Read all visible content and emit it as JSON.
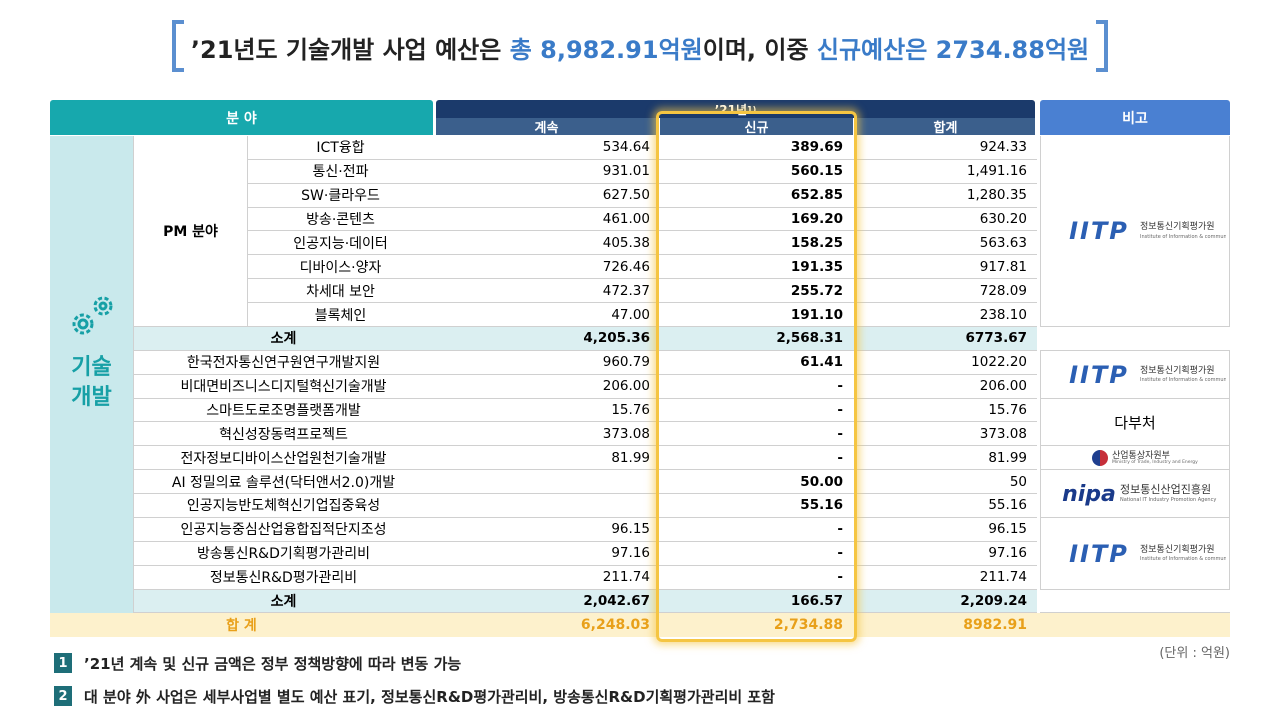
{
  "title": {
    "part1": "’21년도 기술개발 사업 예산은 ",
    "part2": "총 8,982.91억원",
    "part3": "이며, 이중 ",
    "part4": "신규예산은 2734.88억원"
  },
  "table": {
    "header": {
      "field": "분 야",
      "year": "’21년",
      "year_note": "1)",
      "cont": "계속",
      "new": "신규",
      "sum": "합계",
      "remark": "비고"
    },
    "side_label": [
      "기술",
      "개발"
    ],
    "pm_label": "PM 분야",
    "pm_rows": [
      [
        "ICT융합",
        "534.64",
        "389.69",
        "924.33"
      ],
      [
        "통신·전파",
        "931.01",
        "560.15",
        "1,491.16"
      ],
      [
        "SW·클라우드",
        "627.50",
        "652.85",
        "1,280.35"
      ],
      [
        "방송·콘텐츠",
        "461.00",
        "169.20",
        "630.20"
      ],
      [
        "인공지능·데이터",
        "405.38",
        "158.25",
        "563.63"
      ],
      [
        "디바이스·양자",
        "726.46",
        "191.35",
        "917.81"
      ],
      [
        "차세대 보안",
        "472.37",
        "255.72",
        "728.09"
      ],
      [
        "블록체인",
        "47.00",
        "191.10",
        "238.10"
      ]
    ],
    "pm_subtotal": [
      "소계",
      "4,205.36",
      "2,568.31",
      "6773.67"
    ],
    "other_rows": [
      [
        "한국전자통신연구원연구개발지원",
        "960.79",
        "61.41",
        "1022.20"
      ],
      [
        "비대면비즈니스디지털혁신기술개발",
        "206.00",
        "-",
        "206.00"
      ],
      [
        "스마트도로조명플랫폼개발",
        "15.76",
        "-",
        "15.76"
      ],
      [
        "혁신성장동력프로젝트",
        "373.08",
        "-",
        "373.08"
      ],
      [
        "전자정보디바이스산업원천기술개발",
        "81.99",
        "-",
        "81.99"
      ],
      [
        "AI 정밀의료 솔루션(닥터앤서2.0)개발",
        null,
        "50.00",
        "50"
      ],
      [
        "인공지능반도체혁신기업집중육성",
        null,
        "55.16",
        "55.16"
      ],
      [
        "인공지능중심산업융합집적단지조성",
        "96.15",
        "-",
        "96.15"
      ],
      [
        "방송통신R&D기획평가관리비",
        "97.16",
        "-",
        "97.16"
      ],
      [
        "정보통신R&D평가관리비",
        "211.74",
        "-",
        "211.74"
      ]
    ],
    "other_subtotal": [
      "소계",
      "2,042.67",
      "166.57",
      "2,209.24"
    ],
    "total": [
      "합 계",
      "6,248.03",
      "2,734.88",
      "8982.91"
    ],
    "remarks": [
      {
        "logo": "IITP",
        "name": "정보통신기획평가원",
        "sub": "Institute of Information & communications Technology Planning & Evaluation"
      },
      {
        "logo": "IITP",
        "name": "정보통신기획평가원",
        "sub": "Institute of Information & communications Technology Planning & Evaluation"
      },
      {
        "text": "다부처"
      },
      {
        "name": "산업통상자원부",
        "sub": "Ministry of Trade, Industry and Energy"
      },
      {
        "logo": "nipa",
        "name": "정보통신산업진흥원",
        "sub": "National IT Industry Promotion Agency"
      },
      {
        "logo": "IITP",
        "name": "정보통신기획평가원",
        "sub": "Institute of Information & communications Technology Planning & Evaluation"
      }
    ]
  },
  "unit": "(단위 : 억원)",
  "notes": [
    {
      "num": "1",
      "text": "’21년 계속 및 신규 금액은 정부 정책방향에 따라 변동 가능"
    },
    {
      "num": "2",
      "text": "대 분야 外 사업은 세부사업별 별도 예산 표기, 정보통신R&D평가관리비, 방송통신R&D기획평가관리비 포함"
    }
  ]
}
